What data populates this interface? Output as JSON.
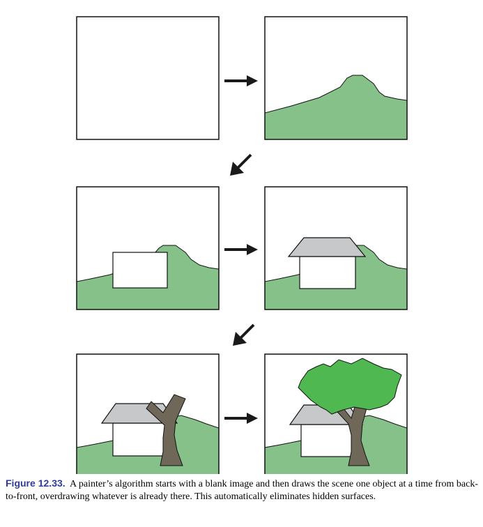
{
  "colors": {
    "ground": "#86c18a",
    "roof": "#c6c8c9",
    "trunk": "#6f6757",
    "foliage": "#50b850",
    "arrow": "#1a1a1a",
    "caption_label": "#2e3a9e"
  },
  "panels": [
    {
      "id": "blank",
      "layers": []
    },
    {
      "id": "ground",
      "layers": [
        "ground"
      ]
    },
    {
      "id": "house-wall",
      "layers": [
        "ground",
        "house-wall"
      ]
    },
    {
      "id": "house-roof",
      "layers": [
        "ground",
        "house-wall",
        "roof"
      ]
    },
    {
      "id": "tree-trunk",
      "layers": [
        "ground",
        "house-wall",
        "roof",
        "trunk"
      ]
    },
    {
      "id": "tree-foliage",
      "layers": [
        "ground",
        "house-wall",
        "roof",
        "trunk",
        "foliage"
      ]
    }
  ],
  "arrows": [
    {
      "direction": "right"
    },
    {
      "direction": "down-left"
    },
    {
      "direction": "right"
    },
    {
      "direction": "down-left"
    },
    {
      "direction": "right"
    }
  ],
  "caption": {
    "label": "Figure 12.33.",
    "text": "A painter’s algorithm starts with a blank image and then draws the scene one object at a time from back-to-front, overdrawing whatever is already there. This automatically eliminates hidden surfaces."
  }
}
